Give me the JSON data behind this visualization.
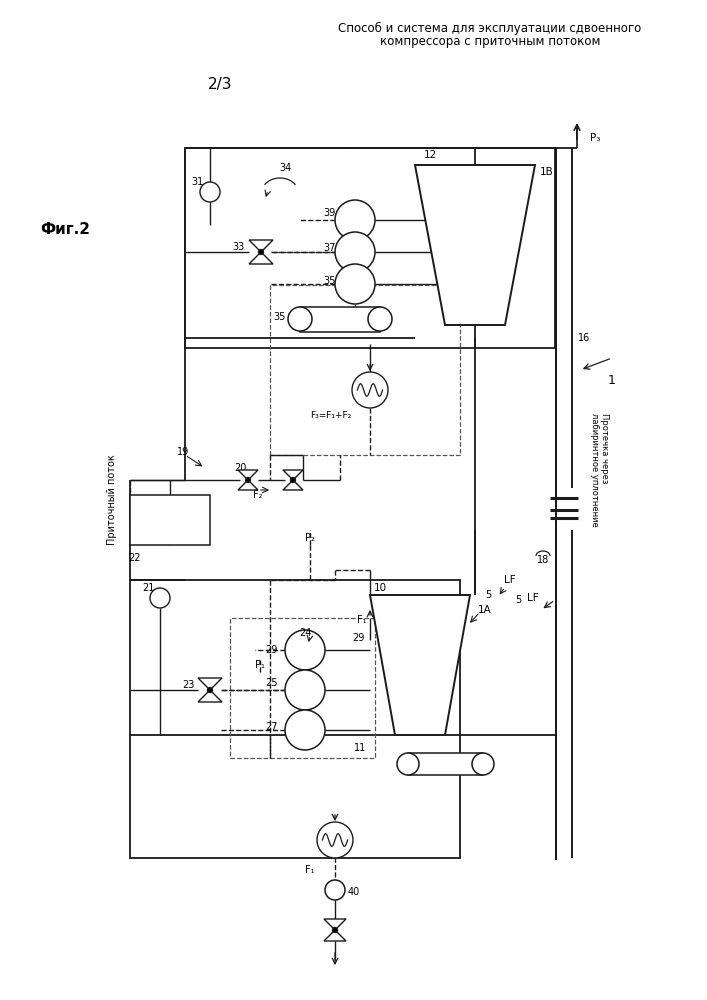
{
  "title_line1": "Способ и система для эксплуатации сдвоенного",
  "title_line2": "компрессора с приточным потоком",
  "page_label": "2/3",
  "fig_label": "Фиг.2",
  "bg_color": "#ffffff",
  "line_color": "#1a1a1a",
  "dashed_color": "#555555",
  "title_fontsize": 8.5,
  "label_fontsize": 7.5,
  "small_fontsize": 7
}
